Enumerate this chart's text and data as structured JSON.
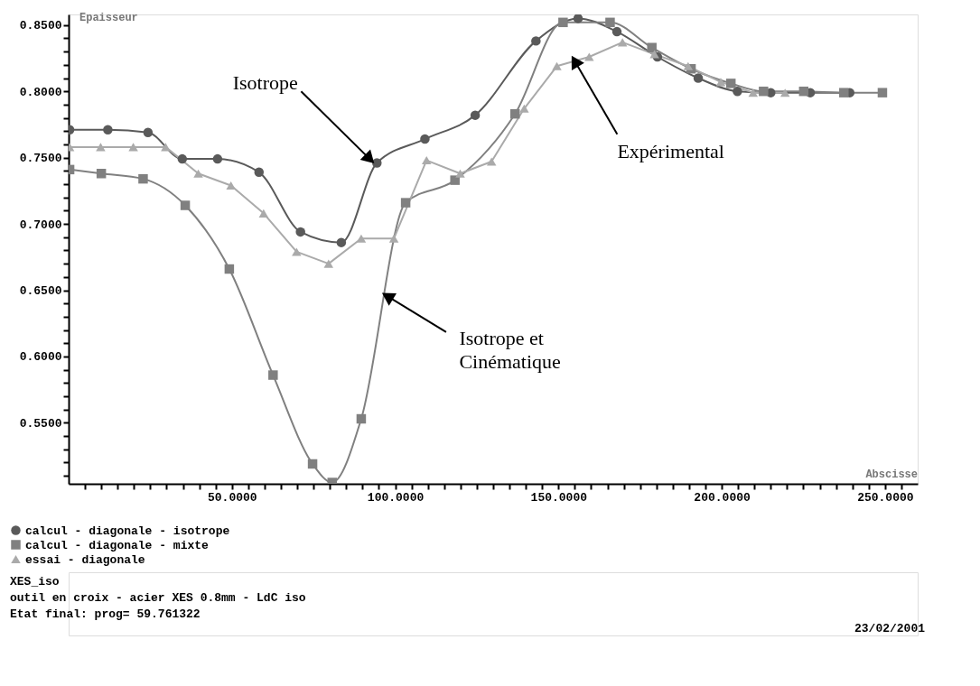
{
  "chart_data": {
    "type": "line",
    "xlabel": "Abscisse",
    "ylabel": "Epaisseur",
    "xlim": [
      0,
      260
    ],
    "ylim": [
      0.504,
      0.858
    ],
    "xticks": [
      {
        "value": 5,
        "label": null
      },
      {
        "value": 10,
        "label": null
      },
      {
        "value": 15,
        "label": null
      },
      {
        "value": 20,
        "label": null
      },
      {
        "value": 25,
        "label": null
      },
      {
        "value": 30,
        "label": null
      },
      {
        "value": 35,
        "label": null
      },
      {
        "value": 40,
        "label": null
      },
      {
        "value": 45,
        "label": null
      },
      {
        "value": 50,
        "label": "50.0000"
      },
      {
        "value": 55,
        "label": null
      },
      {
        "value": 60,
        "label": null
      },
      {
        "value": 65,
        "label": null
      },
      {
        "value": 70,
        "label": null
      },
      {
        "value": 75,
        "label": null
      },
      {
        "value": 80,
        "label": null
      },
      {
        "value": 85,
        "label": null
      },
      {
        "value": 90,
        "label": null
      },
      {
        "value": 95,
        "label": null
      },
      {
        "value": 100,
        "label": "100.0000"
      },
      {
        "value": 105,
        "label": null
      },
      {
        "value": 110,
        "label": null
      },
      {
        "value": 115,
        "label": null
      },
      {
        "value": 120,
        "label": null
      },
      {
        "value": 125,
        "label": null
      },
      {
        "value": 130,
        "label": null
      },
      {
        "value": 135,
        "label": null
      },
      {
        "value": 140,
        "label": null
      },
      {
        "value": 145,
        "label": null
      },
      {
        "value": 150,
        "label": "150.0000"
      },
      {
        "value": 155,
        "label": null
      },
      {
        "value": 160,
        "label": null
      },
      {
        "value": 165,
        "label": null
      },
      {
        "value": 170,
        "label": null
      },
      {
        "value": 175,
        "label": null
      },
      {
        "value": 180,
        "label": null
      },
      {
        "value": 185,
        "label": null
      },
      {
        "value": 190,
        "label": null
      },
      {
        "value": 195,
        "label": null
      },
      {
        "value": 200,
        "label": "200.0000"
      },
      {
        "value": 205,
        "label": null
      },
      {
        "value": 210,
        "label": null
      },
      {
        "value": 215,
        "label": null
      },
      {
        "value": 220,
        "label": null
      },
      {
        "value": 225,
        "label": null
      },
      {
        "value": 230,
        "label": null
      },
      {
        "value": 235,
        "label": null
      },
      {
        "value": 240,
        "label": null
      },
      {
        "value": 245,
        "label": null
      },
      {
        "value": 250,
        "label": "250.0000"
      },
      {
        "value": 255,
        "label": null
      }
    ],
    "yticks": [
      {
        "value": 0.51,
        "label": null
      },
      {
        "value": 0.52,
        "label": null
      },
      {
        "value": 0.53,
        "label": null
      },
      {
        "value": 0.54,
        "label": null
      },
      {
        "value": 0.55,
        "label": "0.5500"
      },
      {
        "value": 0.56,
        "label": null
      },
      {
        "value": 0.57,
        "label": null
      },
      {
        "value": 0.58,
        "label": null
      },
      {
        "value": 0.59,
        "label": null
      },
      {
        "value": 0.6,
        "label": "0.6000"
      },
      {
        "value": 0.61,
        "label": null
      },
      {
        "value": 0.62,
        "label": null
      },
      {
        "value": 0.63,
        "label": null
      },
      {
        "value": 0.64,
        "label": null
      },
      {
        "value": 0.65,
        "label": "0.6500"
      },
      {
        "value": 0.66,
        "label": null
      },
      {
        "value": 0.67,
        "label": null
      },
      {
        "value": 0.68,
        "label": null
      },
      {
        "value": 0.69,
        "label": null
      },
      {
        "value": 0.7,
        "label": "0.7000"
      },
      {
        "value": 0.71,
        "label": null
      },
      {
        "value": 0.72,
        "label": null
      },
      {
        "value": 0.73,
        "label": null
      },
      {
        "value": 0.74,
        "label": null
      },
      {
        "value": 0.75,
        "label": "0.7500"
      },
      {
        "value": 0.76,
        "label": null
      },
      {
        "value": 0.77,
        "label": null
      },
      {
        "value": 0.78,
        "label": null
      },
      {
        "value": 0.79,
        "label": null
      },
      {
        "value": 0.8,
        "label": "0.8000"
      },
      {
        "value": 0.81,
        "label": null
      },
      {
        "value": 0.82,
        "label": null
      },
      {
        "value": 0.83,
        "label": null
      },
      {
        "value": 0.84,
        "label": null
      },
      {
        "value": 0.85,
        "label": "0.8500"
      }
    ],
    "grid": false,
    "legend": "bottom",
    "line_style": "solid",
    "series": [
      {
        "name": "calcul - diagonale - isotrope",
        "color": "#5a5a5a",
        "marker": "circle",
        "x": [
          0.3,
          12.0,
          24.3,
          34.8,
          45.6,
          58.3,
          71.0,
          83.5,
          94.4,
          109.1,
          124.5,
          143.1,
          156.0,
          167.9,
          180.3,
          192.8,
          204.8,
          215.0,
          227.1,
          239.2
        ],
        "values": [
          0.771,
          0.771,
          0.769,
          0.749,
          0.749,
          0.739,
          0.694,
          0.686,
          0.746,
          0.764,
          0.782,
          0.838,
          0.855,
          0.845,
          0.826,
          0.81,
          0.8,
          0.799,
          0.799,
          0.799
        ]
      },
      {
        "name": "calcul - diagonale - mixte",
        "color": "#808080",
        "marker": "square",
        "x": [
          0.3,
          10.0,
          22.8,
          35.7,
          49.2,
          62.6,
          74.7,
          80.7,
          89.6,
          103.2,
          118.3,
          136.7,
          151.4,
          165.8,
          178.6,
          190.6,
          202.8,
          212.8,
          225.1,
          237.4,
          249.2
        ],
        "values": [
          0.741,
          0.738,
          0.734,
          0.714,
          0.666,
          0.586,
          0.519,
          0.505,
          0.553,
          0.716,
          0.733,
          0.783,
          0.852,
          0.852,
          0.833,
          0.817,
          0.806,
          0.8,
          0.8,
          0.799,
          0.799
        ]
      },
      {
        "name": "essai - diagonale",
        "color": "#aaaaaa",
        "marker": "triangle",
        "x": [
          0.3,
          9.8,
          19.8,
          29.7,
          39.7,
          49.7,
          59.7,
          69.8,
          79.6,
          89.6,
          99.6,
          109.6,
          119.9,
          129.5,
          139.5,
          149.5,
          159.4,
          169.6,
          179.4,
          189.7,
          199.7,
          209.6,
          219.4
        ],
        "values": [
          0.758,
          0.758,
          0.758,
          0.758,
          0.738,
          0.729,
          0.708,
          0.679,
          0.67,
          0.689,
          0.689,
          0.748,
          0.738,
          0.747,
          0.787,
          0.819,
          0.826,
          0.837,
          0.828,
          0.819,
          0.807,
          0.799,
          0.799
        ]
      }
    ],
    "annotations": [
      {
        "text": "Isotrope",
        "x": 92.2,
        "y": 0.749
      },
      {
        "text": "Expérimental",
        "x": 155.0,
        "y": 0.8227
      },
      {
        "text": "Isotrope et\nCinématique",
        "x": 97.6,
        "y": 0.6455
      },
      "XES_iso",
      "outil en croix - acier XES 0.8mm - LdC iso",
      "Etat final: prog= 59.761322",
      "23/02/2001"
    ]
  }
}
